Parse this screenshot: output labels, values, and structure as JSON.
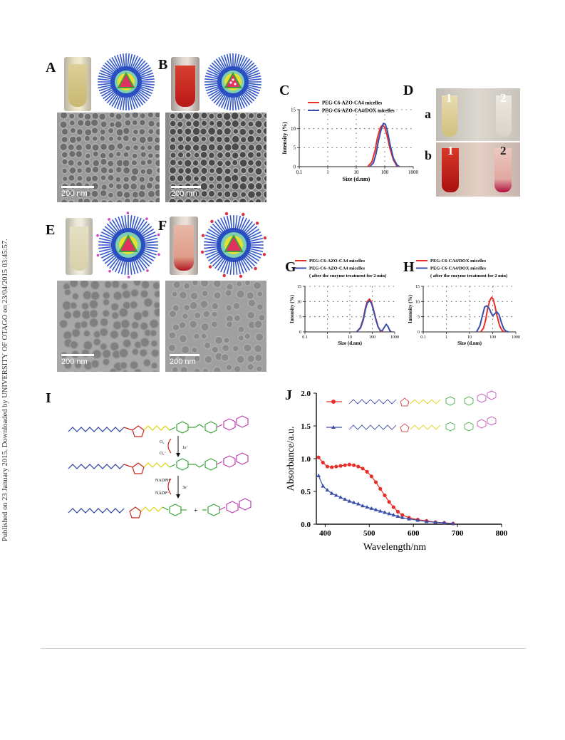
{
  "side_note": "Published on 23 January 2015. Downloaded by UNIVERSITY OF OTAGO on 23/04/2015 03:45:57.",
  "panel_labels": {
    "A": "A",
    "B": "B",
    "C": "C",
    "D": "D",
    "E": "E",
    "F": "F",
    "G": "G",
    "H": "H",
    "I": "I",
    "J": "J"
  },
  "panel_d": {
    "sub_a": "a",
    "sub_b": "b",
    "tube1": "1",
    "tube2": "2"
  },
  "scale_bars": {
    "A": "200 nm",
    "B": "200 nm",
    "E": "200 nm",
    "F": "200 nm"
  },
  "reaction_labels": {
    "step1_top": "O₂",
    "step1_bottom": "O₂⁻",
    "step1_e": "1e⁻",
    "step2_top": "NADPH",
    "step2_bottom": "NADP⁺",
    "step2_e": "3e⁻",
    "plus": "+"
  },
  "colors": {
    "red": "#e8302a",
    "blue": "#3a4eaa",
    "peg": "#2d3fa0",
    "yellow": "#e8e020",
    "green": "#3aa63a",
    "magenta": "#c040b0"
  },
  "chart_data": [
    {
      "id": "C",
      "type": "line",
      "xscale": "log",
      "xlabel": "Size (d.nm)",
      "ylabel": "Intensity (%)",
      "xlim": [
        0.1,
        1000
      ],
      "ylim": [
        0,
        15
      ],
      "xticks": [
        "0.1",
        "1",
        "10",
        "100",
        "1000"
      ],
      "yticks": [
        "0",
        "5",
        "10",
        "15"
      ],
      "legend": "top-right",
      "grid": "dotted",
      "series": [
        {
          "name": "PEG-C6-AZO-CA4 micelles",
          "color": "#e8302a",
          "x": [
            25,
            35,
            45,
            55,
            70,
            85,
            100,
            120,
            150,
            200,
            260,
            300
          ],
          "y": [
            0,
            1.2,
            4.0,
            7.5,
            10.3,
            11.0,
            10.3,
            8.3,
            5.0,
            1.8,
            0.3,
            0
          ]
        },
        {
          "name": "PEG-C6-AZO-CA4/DOX micelles",
          "color": "#3a4eaa",
          "x": [
            30,
            40,
            50,
            60,
            75,
            90,
            105,
            125,
            150,
            200,
            270,
            330
          ],
          "y": [
            0,
            1.0,
            3.5,
            6.8,
            9.8,
            11.4,
            11.2,
            9.3,
            6.2,
            2.3,
            0.4,
            0
          ]
        }
      ]
    },
    {
      "id": "G",
      "type": "line",
      "xscale": "log",
      "xlabel": "Size (d.nm)",
      "ylabel": "Intensity (%)",
      "xlim": [
        0.1,
        1000
      ],
      "ylim": [
        0,
        15
      ],
      "xticks": [
        "0.1",
        "1",
        "10",
        "100",
        "1000"
      ],
      "yticks": [
        "0",
        "5",
        "10",
        "15"
      ],
      "legend": "top",
      "grid": "dotted",
      "legend_note": "( after the enzyme treatment for 2 min)",
      "series": [
        {
          "name": "PEG-C6-AZO-CA4 micelles",
          "color": "#e8302a",
          "x": [
            20,
            30,
            40,
            50,
            60,
            75,
            90,
            110,
            140,
            180,
            230,
            300
          ],
          "y": [
            0,
            1.5,
            4.5,
            8.0,
            10.0,
            10.8,
            10.0,
            7.8,
            4.6,
            1.8,
            0.3,
            0
          ]
        },
        {
          "name": "PEG-C6-AZO-CA4 micelles",
          "color": "#3a4eaa",
          "x": [
            20,
            30,
            40,
            50,
            60,
            75,
            90,
            110,
            140,
            180,
            230,
            280,
            350,
            420,
            500,
            600,
            700
          ],
          "y": [
            0,
            1.3,
            4.0,
            7.5,
            9.5,
            10.2,
            9.6,
            7.5,
            4.4,
            1.7,
            0.4,
            0.4,
            1.6,
            2.5,
            1.8,
            0.5,
            0
          ]
        }
      ]
    },
    {
      "id": "H",
      "type": "line",
      "xscale": "log",
      "xlabel": "Size (d.nm)",
      "ylabel": "Intensity (%)",
      "xlim": [
        0.1,
        1000
      ],
      "ylim": [
        0,
        15
      ],
      "xticks": [
        "0.1",
        "1",
        "10",
        "100",
        "1000"
      ],
      "yticks": [
        "0",
        "5",
        "10",
        "15"
      ],
      "legend": "top",
      "grid": "dotted",
      "legend_note": "( after the enzyme treatment for 2 min)",
      "series": [
        {
          "name": "PEG-C6-CA4/DOX micelles",
          "color": "#e8302a",
          "x": [
            30,
            40,
            50,
            60,
            75,
            90,
            105,
            125,
            150,
            200,
            260,
            320
          ],
          "y": [
            0,
            1.2,
            4.0,
            7.5,
            10.3,
            11.4,
            10.8,
            8.6,
            5.6,
            2.0,
            0.4,
            0
          ]
        },
        {
          "name": "PEG-C6-CA4/DOX micelles",
          "color": "#3a4eaa",
          "x": [
            20,
            28,
            35,
            45,
            55,
            70,
            85,
            100,
            120,
            150,
            190,
            240,
            300,
            380,
            480
          ],
          "y": [
            0,
            2.0,
            5.0,
            8.2,
            8.6,
            7.8,
            6.3,
            5.3,
            5.9,
            6.6,
            5.6,
            3.0,
            1.0,
            0.2,
            0
          ]
        }
      ]
    },
    {
      "id": "J",
      "type": "scatter",
      "xlabel": "Wavelength/nm",
      "ylabel": "Absorbance/a.u.",
      "xlim": [
        380,
        800
      ],
      "ylim": [
        0,
        2.0
      ],
      "xticks": [
        "400",
        "500",
        "600",
        "700",
        "800"
      ],
      "yticks": [
        "0.0",
        "0.5",
        "1.0",
        "1.5",
        "2.0"
      ],
      "legend": "top-right",
      "series": [
        {
          "color": "#e8302a",
          "x": [
            385,
            395,
            405,
            415,
            425,
            435,
            445,
            455,
            465,
            475,
            485,
            495,
            505,
            515,
            525,
            535,
            545,
            555,
            565,
            575,
            590,
            610,
            630,
            650,
            670,
            690
          ],
          "y": [
            1.02,
            0.94,
            0.88,
            0.87,
            0.88,
            0.89,
            0.9,
            0.91,
            0.9,
            0.88,
            0.85,
            0.8,
            0.73,
            0.64,
            0.54,
            0.44,
            0.34,
            0.26,
            0.19,
            0.14,
            0.1,
            0.07,
            0.05,
            0.03,
            0.02,
            0.01
          ]
        },
        {
          "color": "#3a4eaa",
          "x": [
            385,
            395,
            405,
            415,
            425,
            435,
            445,
            455,
            465,
            475,
            485,
            495,
            505,
            515,
            525,
            535,
            545,
            555,
            565,
            575,
            590,
            610,
            630,
            650,
            670,
            690
          ],
          "y": [
            0.74,
            0.58,
            0.52,
            0.47,
            0.44,
            0.41,
            0.38,
            0.35,
            0.33,
            0.31,
            0.28,
            0.26,
            0.24,
            0.22,
            0.2,
            0.18,
            0.16,
            0.14,
            0.12,
            0.1,
            0.08,
            0.06,
            0.04,
            0.03,
            0.02,
            0.01
          ]
        }
      ]
    }
  ]
}
